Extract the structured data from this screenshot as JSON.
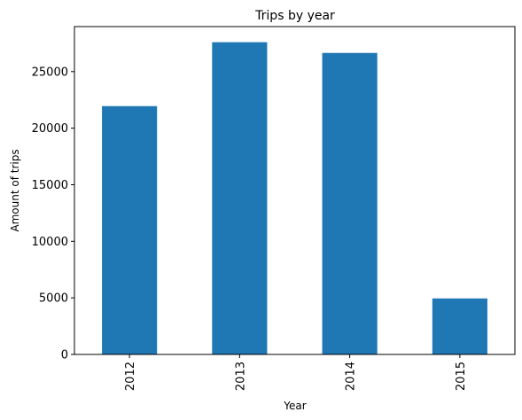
{
  "chart_data": {
    "type": "bar",
    "title": "Trips by year",
    "xlabel": "Year",
    "ylabel": "Amount of trips",
    "categories": [
      "2012",
      "2013",
      "2014",
      "2015"
    ],
    "values": [
      21950,
      27600,
      26650,
      4950
    ],
    "ylim": [
      0,
      28980
    ],
    "yticks": [
      "0",
      "5000",
      "10000",
      "15000",
      "20000",
      "25000"
    ],
    "bar_color": "#1f77b4",
    "grid": false,
    "legend": "none"
  }
}
